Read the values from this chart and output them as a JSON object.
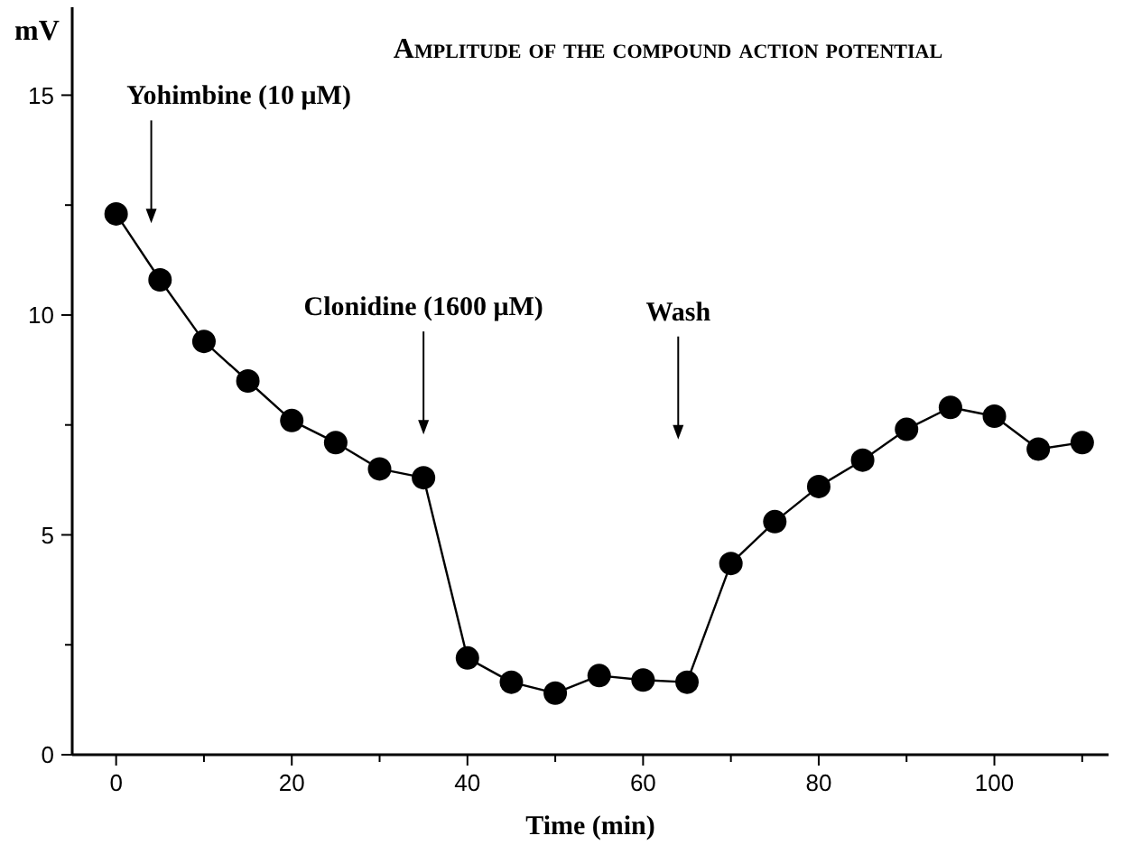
{
  "chart_data": {
    "type": "line",
    "title": "Amplitude of the compound action potential",
    "xlabel": "Time (min)",
    "ylabel": "mV",
    "x": [
      0,
      5,
      10,
      15,
      20,
      25,
      30,
      35,
      40,
      45,
      50,
      55,
      60,
      65,
      70,
      75,
      80,
      85,
      90,
      95,
      100,
      105,
      110
    ],
    "series": [
      {
        "color": "#000000",
        "values": [
          12.3,
          10.8,
          9.4,
          8.5,
          7.6,
          7.1,
          6.5,
          6.3,
          2.2,
          1.65,
          1.4,
          1.8,
          1.7,
          1.65,
          4.35,
          5.3,
          6.1,
          6.7,
          7.4,
          7.9,
          7.7,
          6.95,
          7.1
        ]
      }
    ],
    "xlim": [
      -5,
      113
    ],
    "ylim": [
      0,
      17
    ],
    "xticks": [
      0,
      {
        "value": 10,
        "label": null
      },
      20,
      {
        "value": 30,
        "label": null
      },
      40,
      {
        "value": 50,
        "label": null
      },
      60,
      {
        "value": 70,
        "label": null
      },
      80,
      {
        "value": 90,
        "label": null
      },
      100,
      {
        "value": 110,
        "label": null
      }
    ],
    "yticks": [
      0,
      {
        "value": 2.5,
        "label": null
      },
      5,
      {
        "value": 7.5,
        "label": null
      },
      10,
      {
        "value": 12.5,
        "label": null
      },
      15
    ],
    "ref_lines": [
      {
        "axis": "x",
        "value": 4,
        "label": "Yohimbine (10 μM)"
      },
      {
        "axis": "x",
        "value": 35,
        "label": "Clonidine (1600 μM)"
      },
      {
        "axis": "x",
        "value": 64,
        "label": "Wash"
      }
    ],
    "grid": false,
    "marker": "circle",
    "line_style": "solid"
  }
}
